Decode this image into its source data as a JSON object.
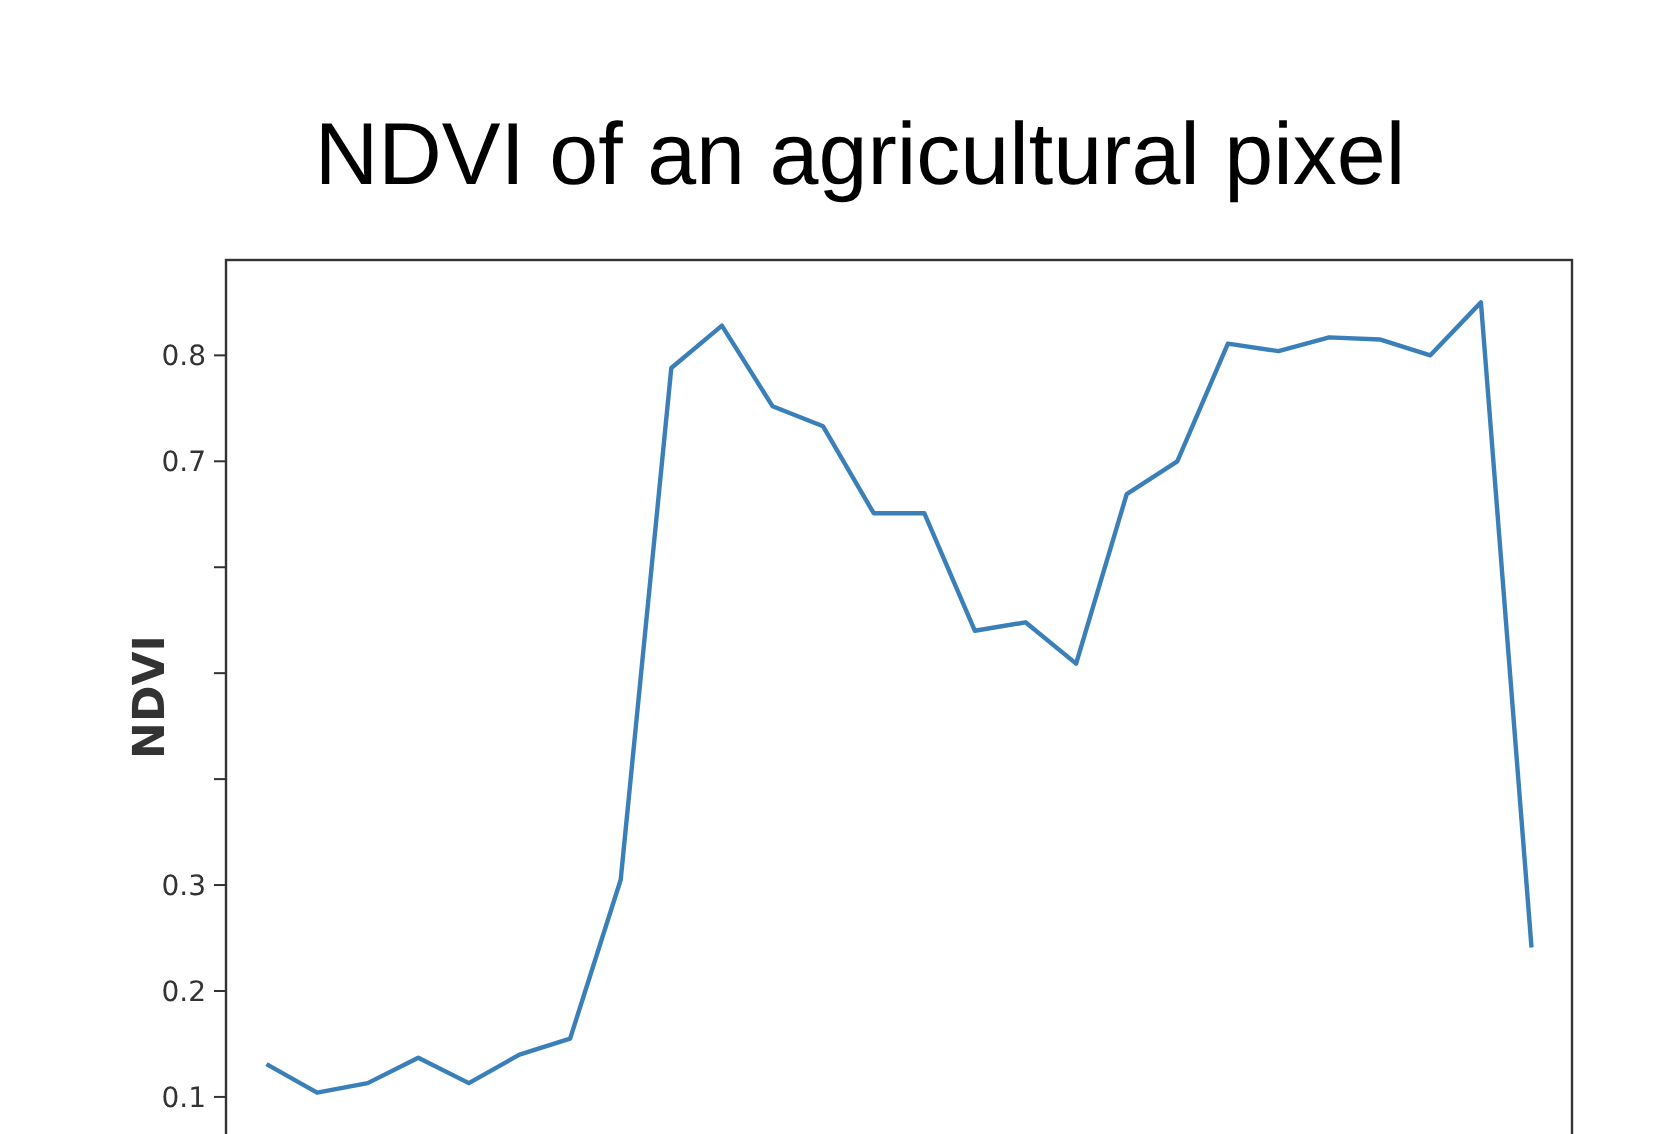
{
  "chart_data": {
    "type": "line",
    "title": "NDVI of an agricultural pixel",
    "ylabel": "NDVI",
    "categories": [
      null,
      null,
      null,
      null,
      null,
      null,
      null,
      null,
      null,
      null,
      null,
      null,
      null,
      null,
      null,
      null,
      null,
      null,
      null,
      null,
      null,
      null,
      null,
      null,
      null,
      null
    ],
    "series": [
      {
        "color": "#3a7fb8",
        "values": [
          0.131,
          0.104,
          0.113,
          0.137,
          0.113,
          0.14,
          0.155,
          0.305,
          0.788,
          0.828,
          0.752,
          0.733,
          0.651,
          0.651,
          0.54,
          0.548,
          0.509,
          0.669,
          0.7,
          0.811,
          0.804,
          0.817,
          0.815,
          0.8,
          0.85,
          0.241
        ]
      }
    ],
    "ylim": [
      0.065,
      0.89
    ],
    "yticks": [
      0.1,
      0.2,
      0.3,
      {
        "value": 0.4,
        "label": null
      },
      {
        "value": 0.5,
        "label": null
      },
      {
        "value": 0.6,
        "label": null
      },
      0.7,
      0.8
    ],
    "tick_labels": "y",
    "grid": false,
    "marker": "none",
    "line_style": "solid"
  }
}
